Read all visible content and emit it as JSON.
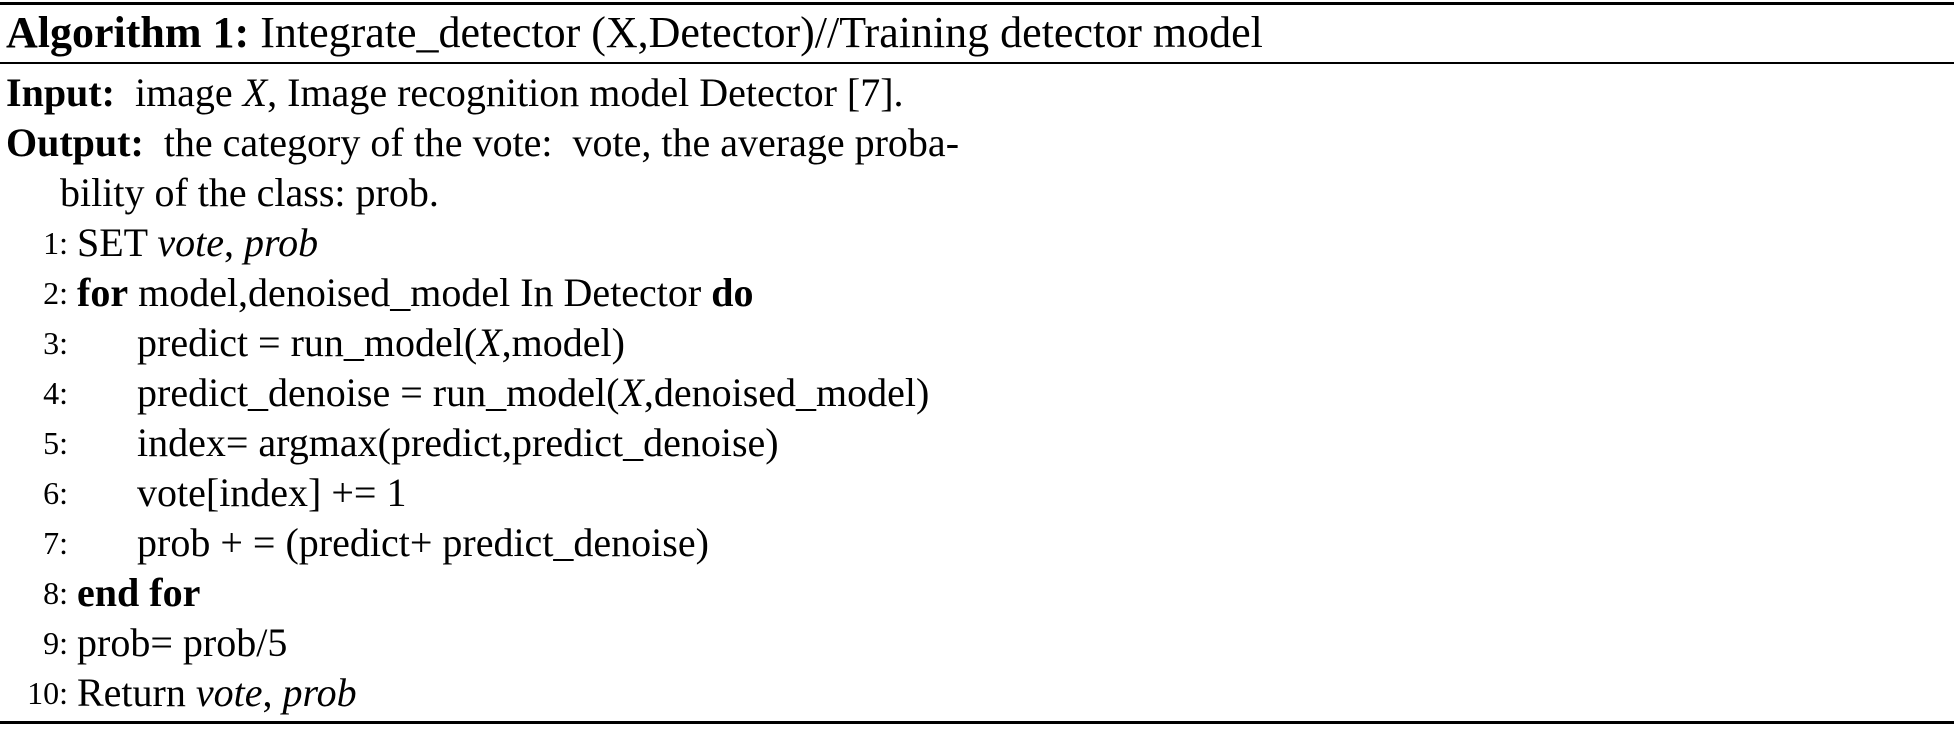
{
  "algorithm": {
    "title": [
      {
        "text": "Algorithm 1: ",
        "style": "b"
      },
      {
        "text": "Integrate_detector (X,Detector)//Training detector model",
        "style": ""
      }
    ],
    "input": [
      {
        "text": "Input: ",
        "style": "b"
      },
      {
        "text": " image ",
        "style": ""
      },
      {
        "text": "X",
        "style": "i"
      },
      {
        "text": ", Image recognition model Detector [7].",
        "style": ""
      }
    ],
    "output": [
      {
        "text": "Output: ",
        "style": "b"
      },
      {
        "text": " the category of the vote:  vote, the average proba-",
        "style": ""
      }
    ],
    "output_cont": [
      {
        "text": "bility of the class: prob.",
        "style": ""
      }
    ],
    "steps": [
      {
        "num": "1:",
        "indent": 0,
        "parts": [
          {
            "text": "SET ",
            "style": ""
          },
          {
            "text": "vote",
            "style": "i"
          },
          {
            "text": ", ",
            "style": ""
          },
          {
            "text": "prob",
            "style": "i"
          }
        ]
      },
      {
        "num": "2:",
        "indent": 0,
        "parts": [
          {
            "text": "for",
            "style": "b"
          },
          {
            "text": " model,denoised_model In Detector ",
            "style": ""
          },
          {
            "text": "do",
            "style": "b"
          }
        ]
      },
      {
        "num": "3:",
        "indent": 1,
        "parts": [
          {
            "text": "predict = run_model(",
            "style": ""
          },
          {
            "text": "X",
            "style": "i"
          },
          {
            "text": ",model)",
            "style": ""
          }
        ]
      },
      {
        "num": "4:",
        "indent": 1,
        "parts": [
          {
            "text": "predict_denoise = run_model(",
            "style": ""
          },
          {
            "text": "X",
            "style": "i"
          },
          {
            "text": ",denoised_model)",
            "style": ""
          }
        ]
      },
      {
        "num": "5:",
        "indent": 1,
        "parts": [
          {
            "text": "index= argmax(predict,predict_denoise)",
            "style": ""
          }
        ]
      },
      {
        "num": "6:",
        "indent": 1,
        "parts": [
          {
            "text": "vote[index] += 1",
            "style": ""
          }
        ]
      },
      {
        "num": "7:",
        "indent": 1,
        "parts": [
          {
            "text": "prob + = (predict+ predict_denoise)",
            "style": ""
          }
        ]
      },
      {
        "num": "8:",
        "indent": 0,
        "parts": [
          {
            "text": "end for",
            "style": "b"
          }
        ]
      },
      {
        "num": "9:",
        "indent": 0,
        "parts": [
          {
            "text": "prob= prob/5",
            "style": ""
          }
        ]
      },
      {
        "num": "10:",
        "indent": 0,
        "parts": [
          {
            "text": "Return ",
            "style": ""
          },
          {
            "text": "vote",
            "style": "i"
          },
          {
            "text": ", ",
            "style": ""
          },
          {
            "text": "prob",
            "style": "i"
          }
        ]
      }
    ]
  }
}
